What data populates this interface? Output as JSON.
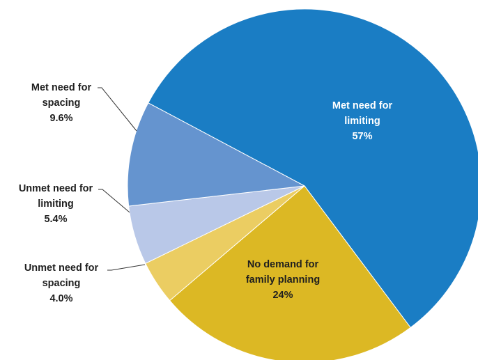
{
  "chart_data": {
    "type": "pie",
    "title": "",
    "slices": [
      {
        "label_lines": [
          "Met need for",
          "limiting",
          "57%"
        ],
        "value": 57,
        "color": "#1a7dc4",
        "label_position": "inside"
      },
      {
        "label_lines": [
          "No demand for",
          "family planning",
          "24%"
        ],
        "value": 24,
        "color": "#dcb824",
        "label_position": "inside"
      },
      {
        "label_lines": [
          "Unmet need for",
          "spacing",
          "4.0%"
        ],
        "value": 4.0,
        "color": "#ebcd62",
        "label_position": "outside-left"
      },
      {
        "label_lines": [
          "Unmet need for",
          "limiting",
          "5.4%"
        ],
        "value": 5.4,
        "color": "#b9c8e8",
        "label_position": "outside-left"
      },
      {
        "label_lines": [
          "Met need for",
          "spacing",
          "9.6%"
        ],
        "value": 9.6,
        "color": "#6594cf",
        "label_position": "outside-left"
      }
    ]
  }
}
